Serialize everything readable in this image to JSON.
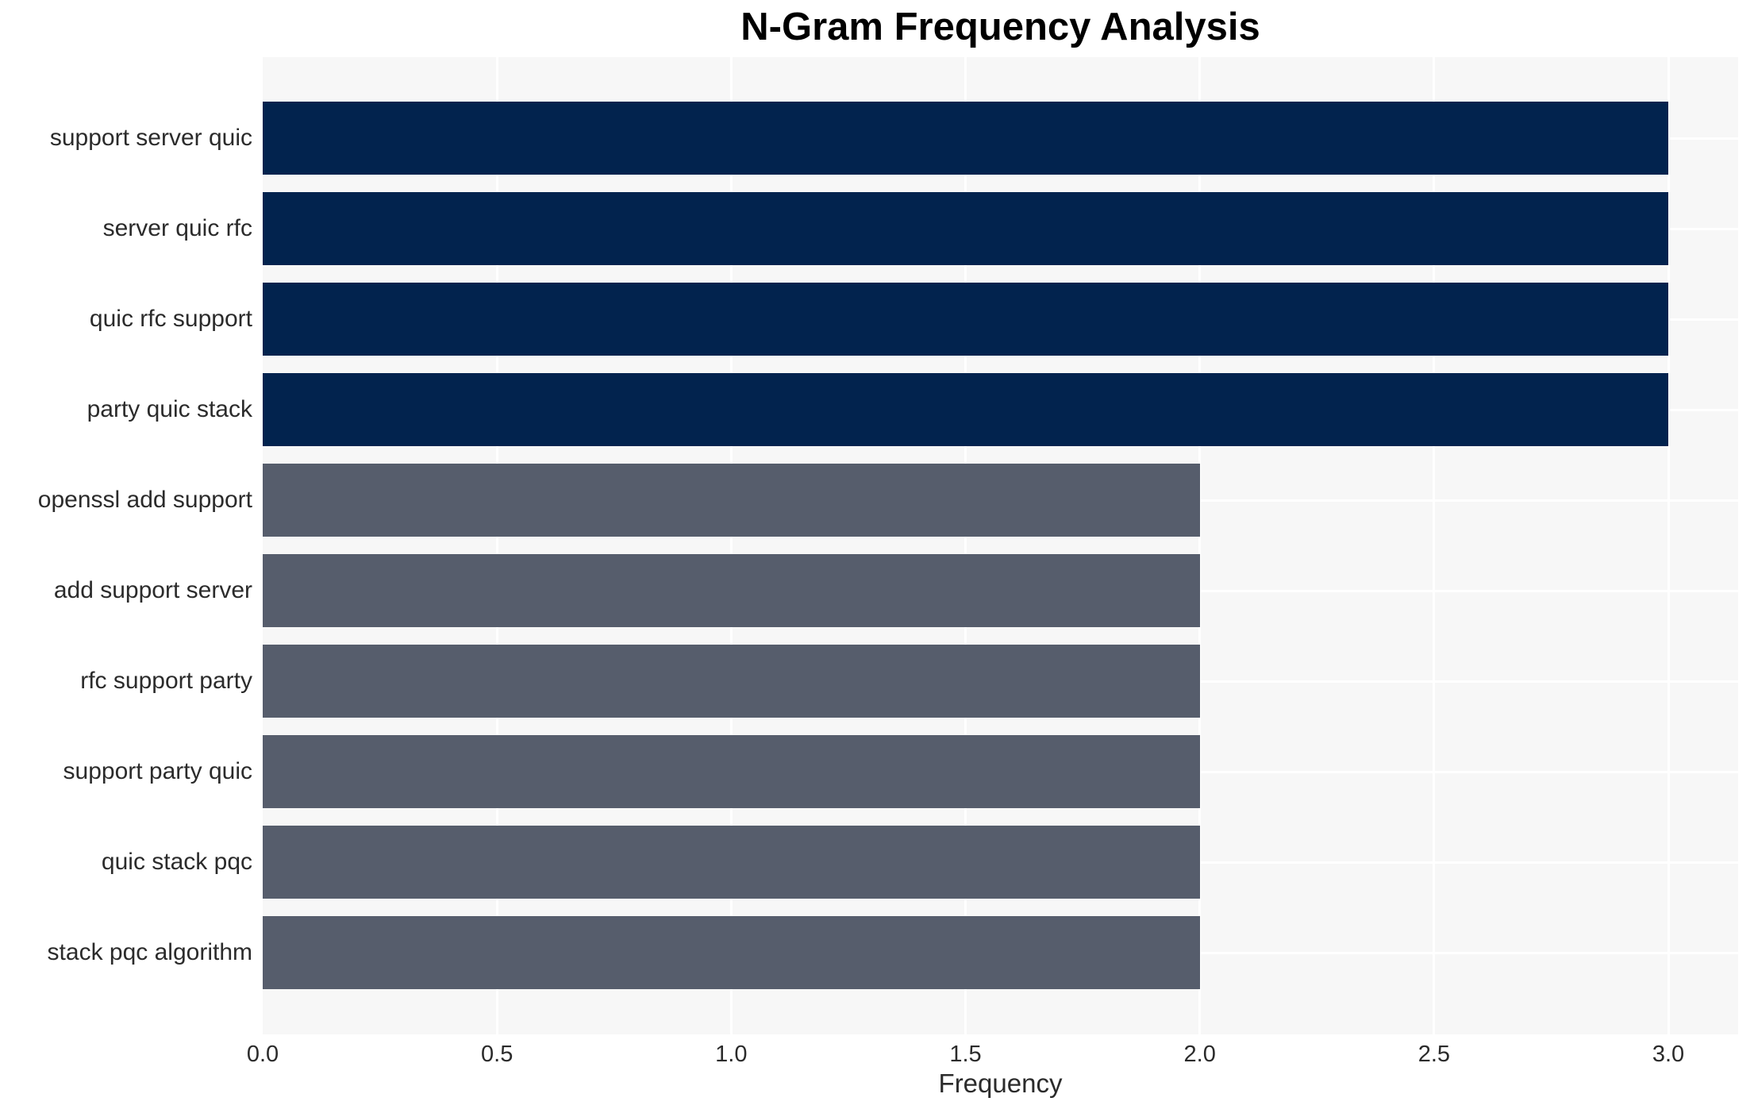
{
  "chart_data": {
    "type": "bar",
    "orientation": "horizontal",
    "title": "N-Gram Frequency Analysis",
    "xlabel": "Frequency",
    "ylabel": "",
    "categories": [
      "support server quic",
      "server quic rfc",
      "quic rfc support",
      "party quic stack",
      "openssl add support",
      "add support server",
      "rfc support party",
      "support party quic",
      "quic stack pqc",
      "stack pqc algorithm"
    ],
    "values": [
      3,
      3,
      3,
      3,
      2,
      2,
      2,
      2,
      2,
      2
    ],
    "bar_colors": [
      "#02234e",
      "#02234e",
      "#02234e",
      "#02234e",
      "#565d6c",
      "#565d6c",
      "#565d6c",
      "#565d6c",
      "#565d6c",
      "#565d6c"
    ],
    "xlim": [
      0,
      3.149
    ],
    "xticks": [
      0.0,
      0.5,
      1.0,
      1.5,
      2.0,
      2.5,
      3.0
    ],
    "xtick_labels": [
      "0.0",
      "0.5",
      "1.0",
      "1.5",
      "2.0",
      "2.5",
      "3.0"
    ],
    "grid": true,
    "legend": false,
    "colors": {
      "high_bar": "#02234e",
      "low_bar": "#565d6c",
      "plot_background": "#f7f7f7",
      "gridline": "#ffffff",
      "tick_text": "#2b2b2b",
      "title_text": "#000000",
      "figure_background": "#ffffff"
    }
  }
}
